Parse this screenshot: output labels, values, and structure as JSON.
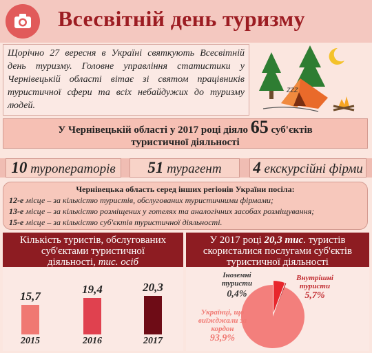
{
  "header": {
    "title": "Всесвітній день туризму",
    "icon": "camera-icon",
    "accent_color": "#9c1c22"
  },
  "intro": {
    "text": "Щорічно 27 вересня в Україні святкують Всесвітній день туризму. Головне управління статистики у Чернівецькій області вітає зі святом працівників туристичної сфери та всіх небайдужих до туризму людей."
  },
  "scene": {
    "icons": [
      "tree-icon",
      "tent-icon",
      "moon-icon",
      "campfire-icon"
    ],
    "zzz": "ZZZ"
  },
  "subjects_band": {
    "prefix": "У Чернівецькій області у 2017 році діяло",
    "count": "65",
    "suffix": "суб'єктів",
    "line2": "туристичної діяльності"
  },
  "pills": [
    {
      "num": "10",
      "label": "туроператорів"
    },
    {
      "num": "51",
      "label": "турагент"
    },
    {
      "num": "4",
      "label": "екскурсійні фірми"
    }
  ],
  "ranks": {
    "heading": "Чернівецька область серед інших регіонів України посіла:",
    "items": [
      {
        "place": "12-е",
        "text": "місце – за кількістю туристів, обслугованих туристичними фірмами;"
      },
      {
        "place": "13-е",
        "text": "місце – за кількістю розміщених у готелях та аналогічних засобах розміщування;"
      },
      {
        "place": "15-е",
        "text": "місце – за кількістю суб'єктів туристичної діяльності."
      }
    ]
  },
  "left_panel": {
    "title_line1": "Кількість туристів, обслугованих",
    "title_line2": "суб'єктами туристичної",
    "title_line3a": "діяльності,",
    "title_line3b": "тис. осіб"
  },
  "right_panel": {
    "line1_a": "У 2017 році",
    "line1_b": "20,3 тис",
    "line1_c": ". туристів",
    "line2": "скористалися послугами суб'єктів",
    "line3": "туристичної діяльності"
  },
  "chart_data": [
    {
      "type": "bar",
      "categories": [
        "2015",
        "2016",
        "2017"
      ],
      "values": [
        15.7,
        19.4,
        20.3
      ],
      "value_labels": [
        "15,7",
        "19,4",
        "20,3"
      ],
      "colors": [
        "#f07872",
        "#e0414f",
        "#6e0c16"
      ]
    },
    {
      "type": "pie",
      "slices": [
        {
          "name_line1": "Внутрішні",
          "name_line2": "туристи",
          "value": 5.7,
          "label": "5,7%",
          "color": "#e8262c"
        },
        {
          "name_line1": "Іноземні",
          "name_line2": "туристи",
          "value": 0.4,
          "label": "0,4%",
          "color": "#b0151b"
        },
        {
          "name_line1": "Українці, що",
          "name_line2": "виїжджали за",
          "name_line3": "кордон",
          "value": 93.9,
          "label": "93,9%",
          "color": "#f37f7c"
        }
      ]
    }
  ]
}
